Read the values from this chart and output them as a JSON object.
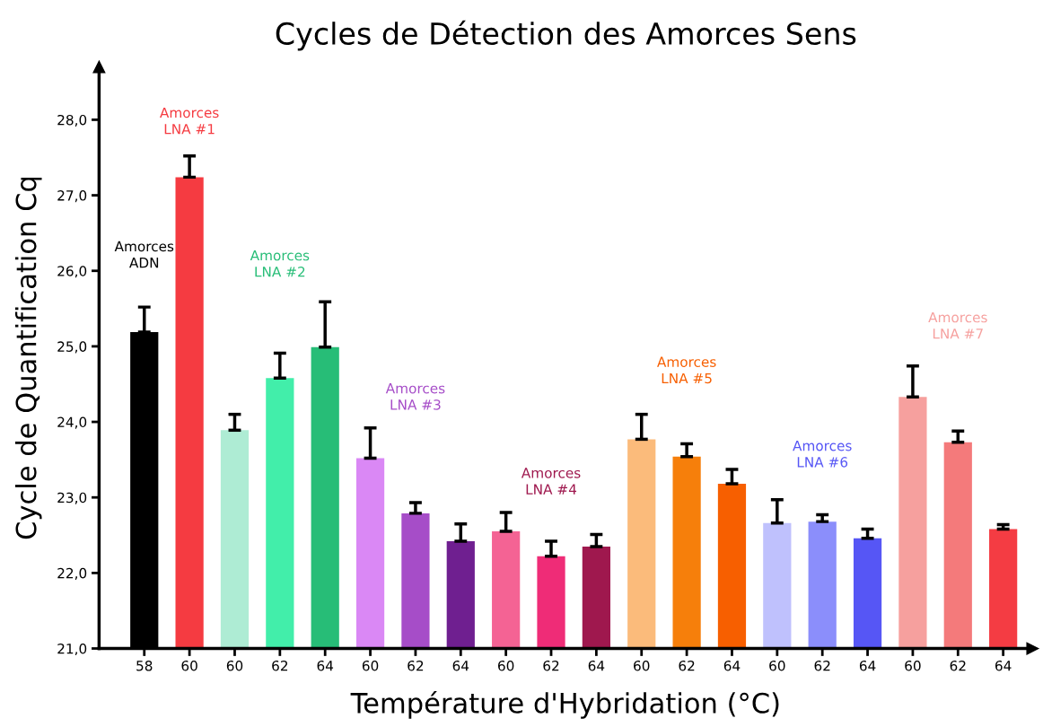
{
  "chart_data": {
    "type": "bar",
    "title": "Cycles de Détection des Amorces Sens",
    "xlabel": "Température d'Hybridation (°C)",
    "ylabel": "Cycle de Quantification Cq",
    "categories": [
      "58",
      "60",
      "60",
      "62",
      "64",
      "60",
      "62",
      "64",
      "60",
      "62",
      "64",
      "60",
      "62",
      "64",
      "60",
      "62",
      "64",
      "60",
      "62",
      "64"
    ],
    "values": [
      25.19,
      27.24,
      23.89,
      24.58,
      24.99,
      23.52,
      22.79,
      22.42,
      22.55,
      22.22,
      22.35,
      23.77,
      23.54,
      23.18,
      22.66,
      22.68,
      22.46,
      24.33,
      23.73,
      22.58
    ],
    "errors": [
      [
        25.19,
        25.52
      ],
      [
        27.24,
        27.52
      ],
      [
        23.89,
        24.1
      ],
      [
        24.58,
        24.91
      ],
      [
        24.99,
        25.59
      ],
      [
        23.52,
        23.92
      ],
      [
        22.79,
        22.93
      ],
      [
        22.42,
        22.65
      ],
      [
        22.55,
        22.8
      ],
      [
        22.22,
        22.42
      ],
      [
        22.35,
        22.51
      ],
      [
        23.77,
        24.1
      ],
      [
        23.54,
        23.71
      ],
      [
        23.18,
        23.37
      ],
      [
        22.66,
        22.97
      ],
      [
        22.68,
        22.77
      ],
      [
        22.46,
        22.58
      ],
      [
        24.33,
        24.74
      ],
      [
        23.73,
        23.88
      ],
      [
        22.58,
        22.64
      ]
    ],
    "colors": [
      "#000000",
      "#f53b41",
      "#aeecd4",
      "#42eeaa",
      "#27bd77",
      "#da88f5",
      "#a64dc8",
      "#6f1f90",
      "#f46394",
      "#ef2c77",
      "#9f184e",
      "#fbbb7b",
      "#f67f0b",
      "#f75f00",
      "#bfc1fd",
      "#8b8efb",
      "#5656f5",
      "#f6a09e",
      "#f47a7b",
      "#f43c43"
    ],
    "ylim": [
      21,
      28.7
    ],
    "yticks": [
      {
        "value": 21,
        "label": "21,0"
      },
      {
        "value": 22,
        "label": "22,0"
      },
      {
        "value": 23,
        "label": "23,0"
      },
      {
        "value": 24,
        "label": "24,0"
      },
      {
        "value": 25,
        "label": "25,0"
      },
      {
        "value": 26,
        "label": "26,0"
      },
      {
        "value": 27,
        "label": "27,0"
      },
      {
        "value": 28,
        "label": "28,0"
      }
    ],
    "annotations": [
      "Amorces\nADN",
      "Amorces\nLNA #1",
      "Amorces\nLNA #2",
      "Amorces\nLNA #3",
      "Amorces\nLNA #4",
      "Amorces\nLNA #5",
      "Amorces\nLNA #6",
      "Amorces\nLNA #7"
    ]
  }
}
